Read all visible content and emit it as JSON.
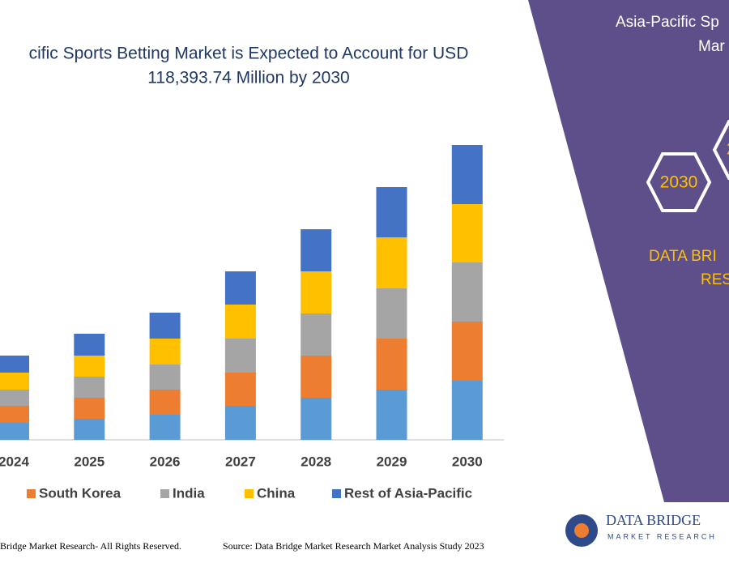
{
  "chart_data": {
    "type": "stacked-bar",
    "title": [
      "cific Sports Betting Market is Expected to Account for USD",
      "118,393.74 Million by 2030"
    ],
    "categories": [
      "2024",
      "2025",
      "2026",
      "2027",
      "2028",
      "2029",
      "2030"
    ],
    "series": [
      {
        "name": null,
        "color": "#5b9bd5",
        "values": [
          21,
          26,
          31,
          42,
          52,
          62,
          73
        ]
      },
      {
        "name": "South Korea",
        "color": "#ed7d31",
        "values": [
          21,
          26,
          31,
          41,
          52,
          63,
          73
        ]
      },
      {
        "name": "India",
        "color": "#a5a5a5",
        "values": [
          20,
          26,
          31,
          42,
          52,
          62,
          73
        ]
      },
      {
        "name": "China",
        "color": "#ffc000",
        "values": [
          21,
          26,
          32,
          42,
          52,
          63,
          72
        ]
      },
      {
        "name": "Rest of Asia-Pacific",
        "color": "#4472c4",
        "values": [
          21,
          27,
          32,
          41,
          52,
          62,
          73
        ]
      }
    ]
  },
  "footer": {
    "rights": "Bridge Market Research- All Rights Reserved.",
    "source": "Source: Data Bridge Market Research Market Analysis Study 2023"
  },
  "panel": {
    "heading": [
      "Asia-Pacific Sp",
      "Mar"
    ],
    "hexagons": [
      "2030",
      "2"
    ],
    "brand": [
      "DATA BRI",
      "RES"
    ]
  },
  "logo": {
    "name": "DATA BRIDGE",
    "tagline": "MARKET RESEARCH"
  }
}
